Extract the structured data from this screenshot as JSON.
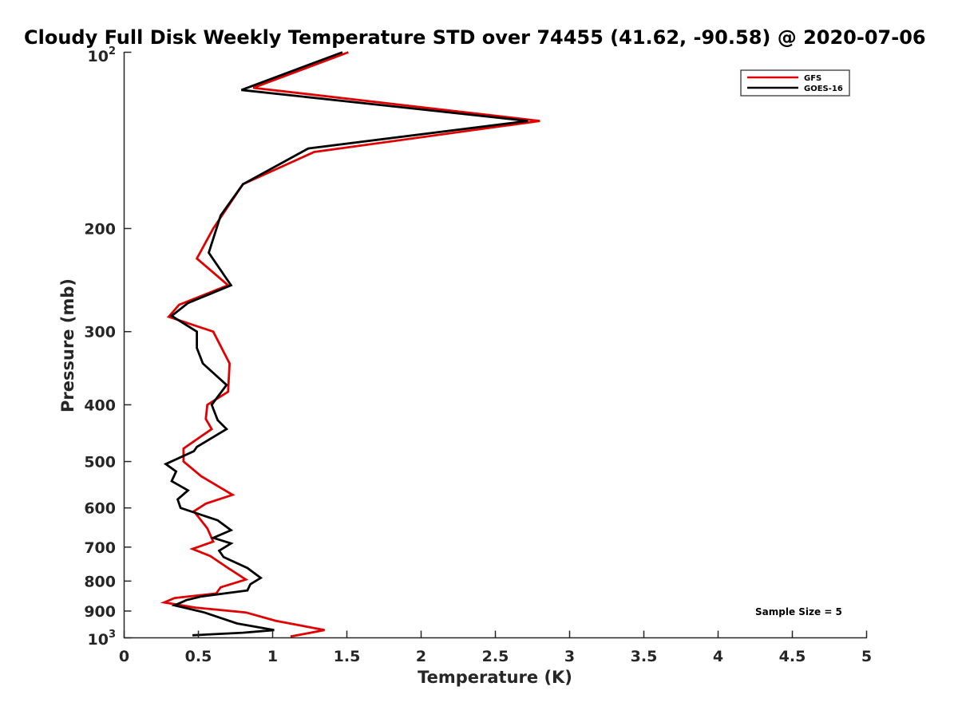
{
  "chart_data": {
    "type": "line",
    "title": "Cloudy Full Disk Weekly Temperature STD over 74455 (41.62, -90.58) @ 2020-07-06",
    "xlabel": "Temperature (K)",
    "ylabel": "Pressure (mb)",
    "xlim": [
      0,
      5
    ],
    "ylim": [
      1000,
      100
    ],
    "y_scale": "log",
    "x_ticks": [
      "0",
      "0.5",
      "1",
      "1.5",
      "2",
      "2.5",
      "3",
      "3.5",
      "4",
      "4.5",
      "5"
    ],
    "y_ticks": [
      "200",
      "300",
      "400",
      "500",
      "600",
      "700",
      "800",
      "900"
    ],
    "y_tick_top_base": "10",
    "y_tick_top_exp": "2",
    "y_tick_bottom_base": "10",
    "y_tick_bottom_exp": "3",
    "legend_position": "top-right",
    "annotation": "Sample Size = 5",
    "grid": false,
    "series": [
      {
        "name": "GFS",
        "color": "#e00000",
        "points": [
          [
            1.51,
            100
          ],
          [
            0.87,
            115
          ],
          [
            2.8,
            131
          ],
          [
            1.28,
            148
          ],
          [
            0.8,
            168
          ],
          [
            0.6,
            200
          ],
          [
            0.49,
            225
          ],
          [
            0.7,
            250
          ],
          [
            0.37,
            270
          ],
          [
            0.3,
            283
          ],
          [
            0.6,
            300
          ],
          [
            0.71,
            340
          ],
          [
            0.7,
            380
          ],
          [
            0.56,
            400
          ],
          [
            0.55,
            423
          ],
          [
            0.59,
            440
          ],
          [
            0.4,
            475
          ],
          [
            0.4,
            500
          ],
          [
            0.52,
            530
          ],
          [
            0.73,
            570
          ],
          [
            0.55,
            590
          ],
          [
            0.47,
            608
          ],
          [
            0.56,
            650
          ],
          [
            0.6,
            685
          ],
          [
            0.46,
            705
          ],
          [
            0.58,
            725
          ],
          [
            0.7,
            760
          ],
          [
            0.82,
            795
          ],
          [
            0.65,
            820
          ],
          [
            0.62,
            840
          ],
          [
            0.34,
            855
          ],
          [
            0.27,
            870
          ],
          [
            0.48,
            888
          ],
          [
            0.82,
            905
          ],
          [
            1.02,
            935
          ],
          [
            1.35,
            970
          ],
          [
            1.12,
            995
          ]
        ]
      },
      {
        "name": "GOES-16",
        "color": "#000000",
        "points": [
          [
            1.47,
            100
          ],
          [
            0.79,
            116
          ],
          [
            2.72,
            131
          ],
          [
            1.24,
            146
          ],
          [
            0.8,
            168
          ],
          [
            0.65,
            190
          ],
          [
            0.57,
            220
          ],
          [
            0.72,
            250
          ],
          [
            0.43,
            268
          ],
          [
            0.32,
            282
          ],
          [
            0.49,
            300
          ],
          [
            0.49,
            320
          ],
          [
            0.53,
            340
          ],
          [
            0.69,
            370
          ],
          [
            0.59,
            400
          ],
          [
            0.63,
            425
          ],
          [
            0.69,
            440
          ],
          [
            0.49,
            472
          ],
          [
            0.47,
            480
          ],
          [
            0.28,
            505
          ],
          [
            0.35,
            520
          ],
          [
            0.32,
            540
          ],
          [
            0.43,
            560
          ],
          [
            0.36,
            580
          ],
          [
            0.38,
            600
          ],
          [
            0.63,
            630
          ],
          [
            0.72,
            655
          ],
          [
            0.6,
            675
          ],
          [
            0.72,
            690
          ],
          [
            0.64,
            710
          ],
          [
            0.67,
            728
          ],
          [
            0.83,
            760
          ],
          [
            0.92,
            790
          ],
          [
            0.85,
            810
          ],
          [
            0.83,
            830
          ],
          [
            0.52,
            850
          ],
          [
            0.42,
            862
          ],
          [
            0.34,
            880
          ],
          [
            0.54,
            905
          ],
          [
            0.76,
            945
          ],
          [
            1.01,
            970
          ],
          [
            0.8,
            980
          ],
          [
            0.46,
            990
          ]
        ]
      }
    ]
  }
}
